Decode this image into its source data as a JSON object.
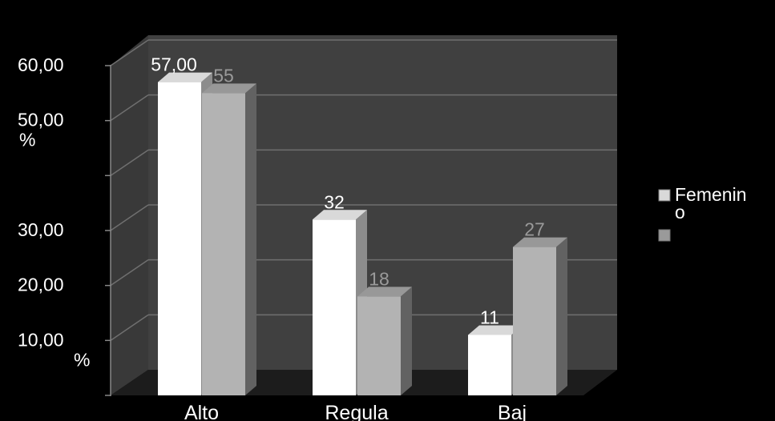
{
  "chart_data": {
    "type": "bar",
    "title": "",
    "xlabel": "",
    "ylabel": "",
    "ylim": [
      0,
      60
    ],
    "grid": true,
    "legend_position": "right",
    "categories": [
      "Alto",
      "Regula",
      "Baj"
    ],
    "y_tick_labels": [
      {
        "value": 60,
        "label": "60,00"
      },
      {
        "value": 50,
        "label": "50,00 %"
      },
      {
        "value": 40,
        "label": ""
      },
      {
        "value": 30,
        "label": "30,00"
      },
      {
        "value": 20,
        "label": "20,00"
      },
      {
        "value": 10,
        "label": "10,00 %"
      },
      {
        "value": 0,
        "label": ""
      }
    ],
    "series": [
      {
        "name": "Femenino",
        "values": [
          57,
          32,
          11
        ],
        "data_labels": [
          "57,00",
          "32",
          "11"
        ],
        "color": "#ffffff",
        "label_color": "#ffffff"
      },
      {
        "name": "",
        "values": [
          55,
          18,
          27
        ],
        "data_labels": [
          "55",
          "18",
          "27"
        ],
        "color": "#b3b3b3",
        "label_color": "#9a9a9a"
      }
    ]
  }
}
